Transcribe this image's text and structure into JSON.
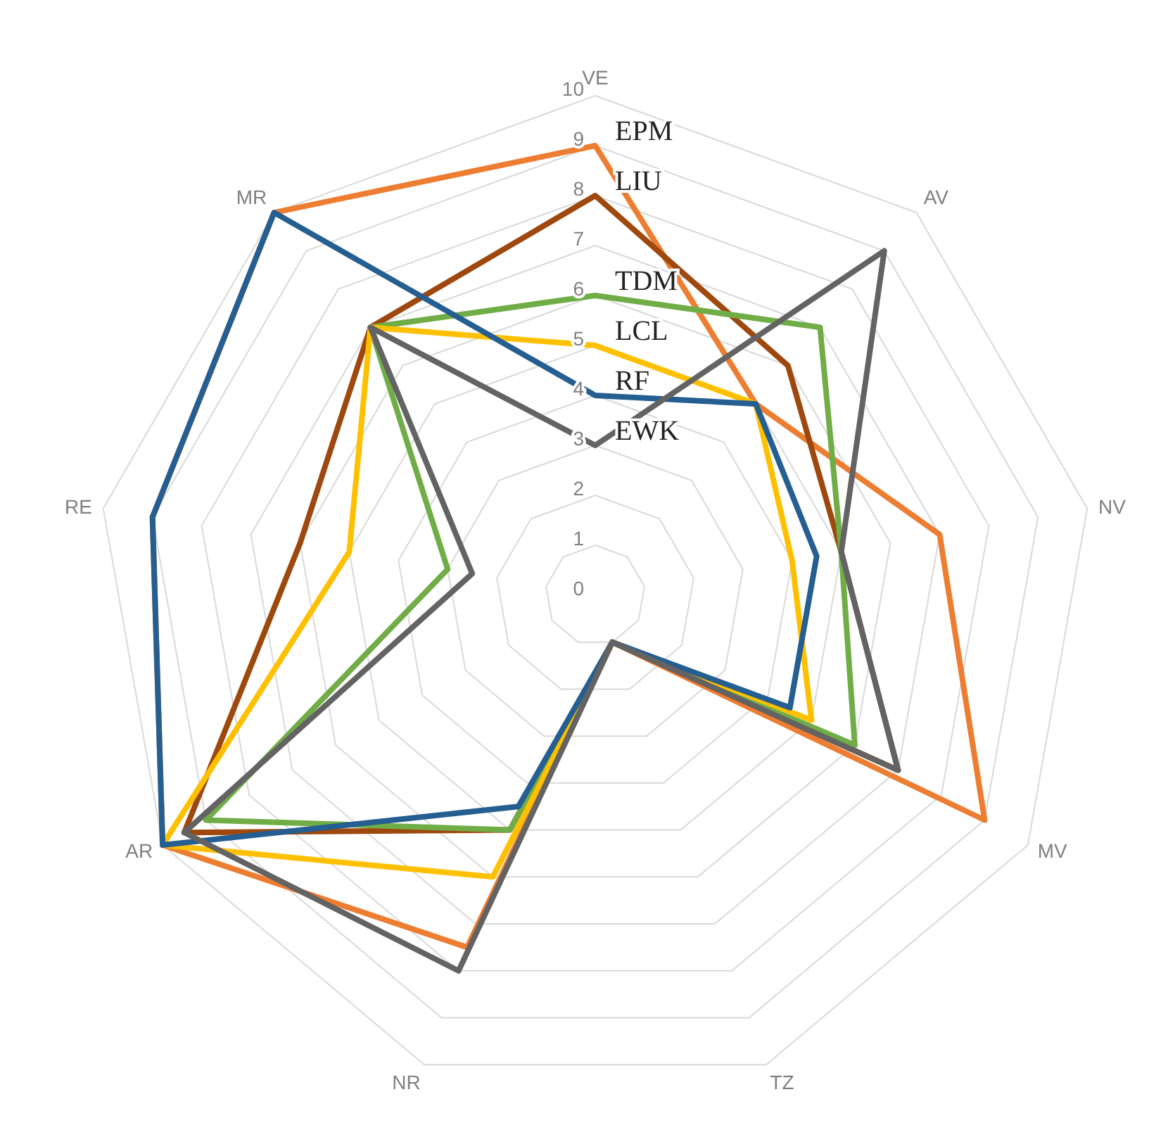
{
  "chart_data": {
    "type": "radar",
    "categories": [
      "VE",
      "AV",
      "NV",
      "MV",
      "TZ",
      "NR",
      "AR",
      "RE",
      "MR"
    ],
    "ylim": [
      0,
      10
    ],
    "yticks": [
      0,
      1,
      2,
      3,
      4,
      5,
      6,
      7,
      8,
      9,
      10
    ],
    "grid": true,
    "legend": false,
    "marker": "none",
    "series": [
      {
        "name": "EPM",
        "color": "#ed7d31",
        "values": [
          9,
          5,
          7,
          9,
          1,
          7.5,
          10,
          9,
          10
        ]
      },
      {
        "name": "LIU",
        "color": "#9e480e",
        "values": [
          8,
          6,
          5,
          7,
          1,
          5,
          9.5,
          6,
          7
        ]
      },
      {
        "name": "TDM",
        "color": "#70ad47",
        "values": [
          6,
          7,
          5,
          6,
          1,
          5,
          9,
          3,
          7
        ]
      },
      {
        "name": "LCL",
        "color": "#ffc000",
        "values": [
          5,
          5,
          4,
          5,
          1,
          6,
          10,
          5,
          7
        ]
      },
      {
        "name": "RF",
        "color": "#255e91",
        "values": [
          4,
          5,
          4.5,
          4.5,
          1,
          4.5,
          10,
          9,
          10
        ]
      },
      {
        "name": "EWK",
        "color": "#636363",
        "values": [
          3,
          9,
          5,
          7,
          1,
          8,
          9.5,
          2.5,
          7
        ]
      }
    ]
  }
}
